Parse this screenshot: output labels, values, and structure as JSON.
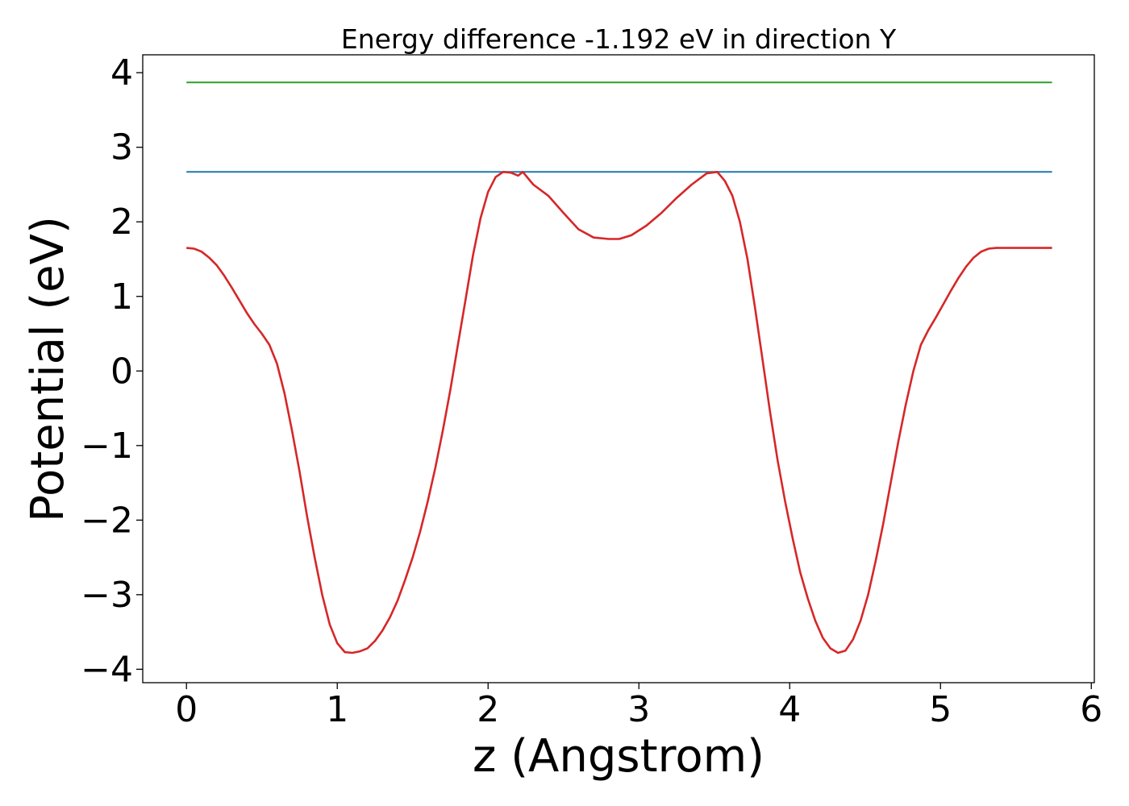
{
  "chart_data": {
    "type": "line",
    "title": "Energy difference -1.192 eV in direction Y",
    "xlabel": "z (Angstrom)",
    "ylabel": "Potential (eV)",
    "xlim": [
      -0.29,
      6.02
    ],
    "ylim": [
      -4.18,
      4.24
    ],
    "xticks": [
      0,
      1,
      2,
      3,
      4,
      5,
      6
    ],
    "xtick_labels": [
      "0",
      "1",
      "2",
      "3",
      "4",
      "5",
      "6"
    ],
    "yticks": [
      -4,
      -3,
      -2,
      -1,
      0,
      1,
      2,
      3,
      4
    ],
    "ytick_labels": [
      "−4",
      "−3",
      "−2",
      "−1",
      "0",
      "1",
      "2",
      "3",
      "4"
    ],
    "grid": false,
    "series": [
      {
        "color": "#1f77b4",
        "x": [
          0,
          5.74
        ],
        "y": [
          2.67,
          2.67
        ]
      },
      {
        "color": "#2ca02c",
        "x": [
          0,
          5.74
        ],
        "y": [
          3.87,
          3.87
        ]
      },
      {
        "color": "#d62728",
        "x": [
          0,
          0.05,
          0.1,
          0.15,
          0.2,
          0.25,
          0.3,
          0.35,
          0.4,
          0.45,
          0.5,
          0.55,
          0.6,
          0.65,
          0.7,
          0.75,
          0.8,
          0.85,
          0.9,
          0.95,
          1.0,
          1.05,
          1.1,
          1.15,
          1.2,
          1.25,
          1.3,
          1.35,
          1.4,
          1.45,
          1.5,
          1.55,
          1.6,
          1.65,
          1.7,
          1.75,
          1.8,
          1.85,
          1.9,
          1.95,
          2.0,
          2.05,
          2.1,
          2.15,
          2.2,
          2.23,
          2.3,
          2.4,
          2.5,
          2.6,
          2.7,
          2.8,
          2.87,
          2.95,
          3.05,
          3.15,
          3.25,
          3.35,
          3.45,
          3.52,
          3.57,
          3.62,
          3.67,
          3.72,
          3.77,
          3.82,
          3.87,
          3.92,
          3.97,
          4.02,
          4.07,
          4.12,
          4.17,
          4.22,
          4.27,
          4.32,
          4.37,
          4.42,
          4.47,
          4.52,
          4.57,
          4.62,
          4.67,
          4.72,
          4.77,
          4.82,
          4.87,
          4.92,
          4.97,
          5.02,
          5.07,
          5.12,
          5.17,
          5.22,
          5.27,
          5.32,
          5.37,
          5.42,
          5.47,
          5.52,
          5.57,
          5.62,
          5.67,
          5.74
        ],
        "y": [
          1.65,
          1.64,
          1.6,
          1.52,
          1.42,
          1.28,
          1.12,
          0.95,
          0.78,
          0.63,
          0.5,
          0.35,
          0.1,
          -0.3,
          -0.8,
          -1.35,
          -1.95,
          -2.5,
          -3.0,
          -3.4,
          -3.65,
          -3.77,
          -3.78,
          -3.76,
          -3.72,
          -3.62,
          -3.48,
          -3.3,
          -3.08,
          -2.8,
          -2.5,
          -2.15,
          -1.75,
          -1.3,
          -0.8,
          -0.25,
          0.35,
          0.95,
          1.55,
          2.05,
          2.4,
          2.6,
          2.67,
          2.66,
          2.62,
          2.67,
          2.5,
          2.35,
          2.12,
          1.9,
          1.79,
          1.77,
          1.77,
          1.82,
          1.95,
          2.12,
          2.32,
          2.5,
          2.65,
          2.67,
          2.55,
          2.35,
          2.0,
          1.5,
          0.85,
          0.15,
          -0.55,
          -1.2,
          -1.75,
          -2.25,
          -2.7,
          -3.05,
          -3.35,
          -3.58,
          -3.72,
          -3.78,
          -3.75,
          -3.6,
          -3.35,
          -3.0,
          -2.55,
          -2.05,
          -1.5,
          -0.95,
          -0.45,
          0.0,
          0.35,
          0.55,
          0.72,
          0.9,
          1.08,
          1.25,
          1.4,
          1.52,
          1.6,
          1.64,
          1.65,
          1.65,
          1.65,
          1.65,
          1.65,
          1.65,
          1.65,
          1.65
        ]
      }
    ]
  }
}
